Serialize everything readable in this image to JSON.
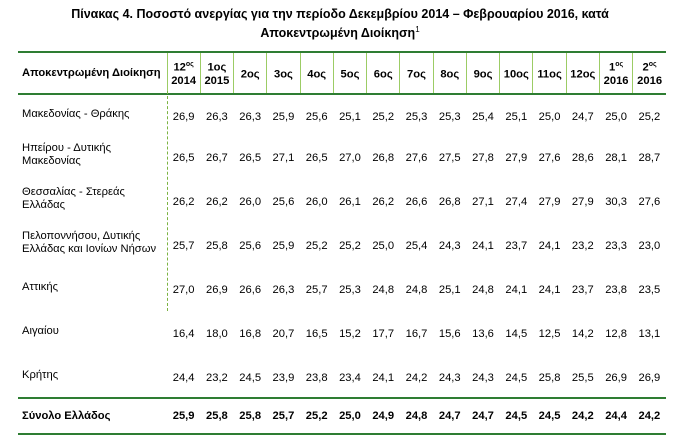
{
  "title": {
    "line1": "Πίνακας 4. Ποσοστό ανεργίας για την περίοδο Δεκεμβρίου 2014 – Φεβρουαρίου 2016, κατά",
    "line2": "Αποκεντρωμένη Διοίκηση",
    "footnote": "1"
  },
  "table": {
    "row_header": "Αποκεντρωμένη Διοίκηση",
    "columns": [
      {
        "top": "12",
        "sup": "ος",
        "bottom": "2014"
      },
      {
        "top": "1ος",
        "sup": "",
        "bottom": "2015"
      },
      {
        "top": "2ος",
        "sup": "",
        "bottom": ""
      },
      {
        "top": "3ος",
        "sup": "",
        "bottom": ""
      },
      {
        "top": "4ος",
        "sup": "",
        "bottom": ""
      },
      {
        "top": "5ος",
        "sup": "",
        "bottom": ""
      },
      {
        "top": "6ος",
        "sup": "",
        "bottom": ""
      },
      {
        "top": "7ος",
        "sup": "",
        "bottom": ""
      },
      {
        "top": "8ος",
        "sup": "",
        "bottom": ""
      },
      {
        "top": "9ος",
        "sup": "",
        "bottom": ""
      },
      {
        "top": "10ος",
        "sup": "",
        "bottom": ""
      },
      {
        "top": "11ος",
        "sup": "",
        "bottom": ""
      },
      {
        "top": "12ος",
        "sup": "",
        "bottom": ""
      },
      {
        "top": "1",
        "sup": "ος",
        "bottom": "2016"
      },
      {
        "top": "2",
        "sup": "ος",
        "bottom": "2016"
      }
    ],
    "rows": [
      {
        "name": [
          "Μακεδονίας - Θράκης"
        ],
        "values": [
          "26,9",
          "26,3",
          "26,3",
          "25,9",
          "25,6",
          "25,1",
          "25,2",
          "25,3",
          "25,3",
          "25,4",
          "25,1",
          "25,0",
          "24,7",
          "25,0",
          "25,2"
        ]
      },
      {
        "name": [
          "Ηπείρου - Δυτικής",
          "Μακεδονίας"
        ],
        "values": [
          "26,5",
          "26,7",
          "26,5",
          "27,1",
          "26,5",
          "27,0",
          "26,8",
          "27,6",
          "27,5",
          "27,8",
          "27,9",
          "27,6",
          "28,6",
          "28,1",
          "28,7"
        ]
      },
      {
        "name": [
          "Θεσσαλίας - Στερεάς",
          "Ελλάδας"
        ],
        "values": [
          "26,2",
          "26,2",
          "26,0",
          "25,6",
          "26,0",
          "26,1",
          "26,2",
          "26,6",
          "26,8",
          "27,1",
          "27,4",
          "27,9",
          "27,9",
          "30,3",
          "27,6"
        ]
      },
      {
        "name": [
          "Πελοποννήσου, Δυτικής",
          "Ελλάδας και Ιονίων Νήσων"
        ],
        "values": [
          "25,7",
          "25,8",
          "25,6",
          "25,9",
          "25,2",
          "25,2",
          "25,0",
          "25,4",
          "24,3",
          "24,1",
          "23,7",
          "24,1",
          "23,2",
          "23,3",
          "23,0"
        ]
      },
      {
        "name": [
          "Αττικής"
        ],
        "values": [
          "27,0",
          "26,9",
          "26,6",
          "26,3",
          "25,7",
          "25,3",
          "24,8",
          "24,8",
          "25,1",
          "24,8",
          "24,1",
          "24,1",
          "23,7",
          "23,8",
          "23,5"
        ]
      },
      {
        "name": [
          "Αιγαίου"
        ],
        "values": [
          "16,4",
          "18,0",
          "16,8",
          "20,7",
          "16,5",
          "15,2",
          "17,7",
          "16,7",
          "15,6",
          "13,6",
          "14,5",
          "12,5",
          "14,2",
          "12,8",
          "13,1"
        ]
      },
      {
        "name": [
          "Κρήτης"
        ],
        "values": [
          "24,4",
          "23,2",
          "24,5",
          "23,9",
          "23,8",
          "23,4",
          "24,1",
          "24,2",
          "24,3",
          "24,3",
          "24,5",
          "25,8",
          "25,5",
          "26,9",
          "26,9"
        ]
      }
    ],
    "total": {
      "name": "Σύνολο Ελλάδος",
      "values": [
        "25,9",
        "25,8",
        "25,8",
        "25,7",
        "25,2",
        "25,0",
        "24,9",
        "24,8",
        "24,7",
        "24,7",
        "24,5",
        "24,5",
        "24,2",
        "24,4",
        "24,2"
      ]
    }
  }
}
